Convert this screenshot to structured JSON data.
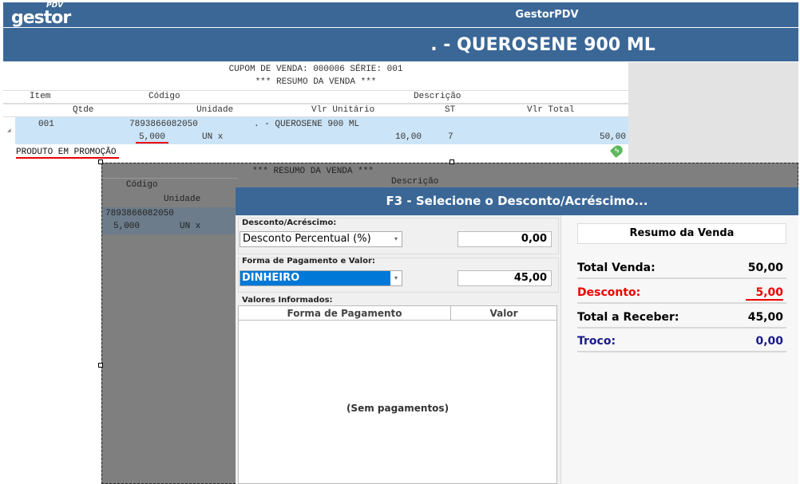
{
  "header": {
    "logo": "gestor",
    "logo_sup": "PDV",
    "app_title": "GestorPDV",
    "product_title": ". - QUEROSENE 900 ML"
  },
  "receipt": {
    "cupom": "CUPOM DE VENDA: 000006  SÉRIE: 001",
    "resumo": "*** RESUMO DA VENDA ***",
    "headers1": {
      "item": "Item",
      "codigo": "Código",
      "descricao": "Descrição"
    },
    "headers2": {
      "qtde": "Qtde",
      "unidade": "Unidade",
      "vlr_unit": "Vlr Unitário",
      "st": "ST",
      "vlr_total": "Vlr Total"
    },
    "row": {
      "item": "001",
      "codigo": "7893866082050",
      "descricao": ". - QUEROSENE 900 ML",
      "qtde": "5,000",
      "unidade": "UN x",
      "vlr_unit": "10,00",
      "st": "7",
      "vlr_total": "50,00"
    },
    "promo": "PRODUTO EM PROMOÇÃO"
  },
  "dialog": {
    "title": "F3 - Selecione o Desconto/Acréscimo...",
    "desconto_group": "Desconto/Acréscimo:",
    "desconto_type": "Desconto Percentual (%)",
    "desconto_value": "0,00",
    "pagamento_group": "Forma de Pagamento e Valor:",
    "pagamento_type": "DINHEIRO",
    "pagamento_value": "45,00",
    "valores_group": "Valores Informados:",
    "col_forma": "Forma de Pagamento",
    "col_valor": "Valor",
    "empty": "(Sem  pagamentos)",
    "summary": {
      "title": "Resumo da Venda",
      "total_venda_label": "Total Venda:",
      "total_venda": "50,00",
      "desconto_label": "Desconto:",
      "desconto": "5,00",
      "total_receber_label": "Total a Receber:",
      "total_receber": "45,00",
      "troco_label": "Troco:",
      "troco": "0,00"
    }
  },
  "colors": {
    "brand": "#3b6797",
    "selection": "#cce4f7",
    "discount": "#ee0000",
    "troco": "#1a1a8c"
  }
}
